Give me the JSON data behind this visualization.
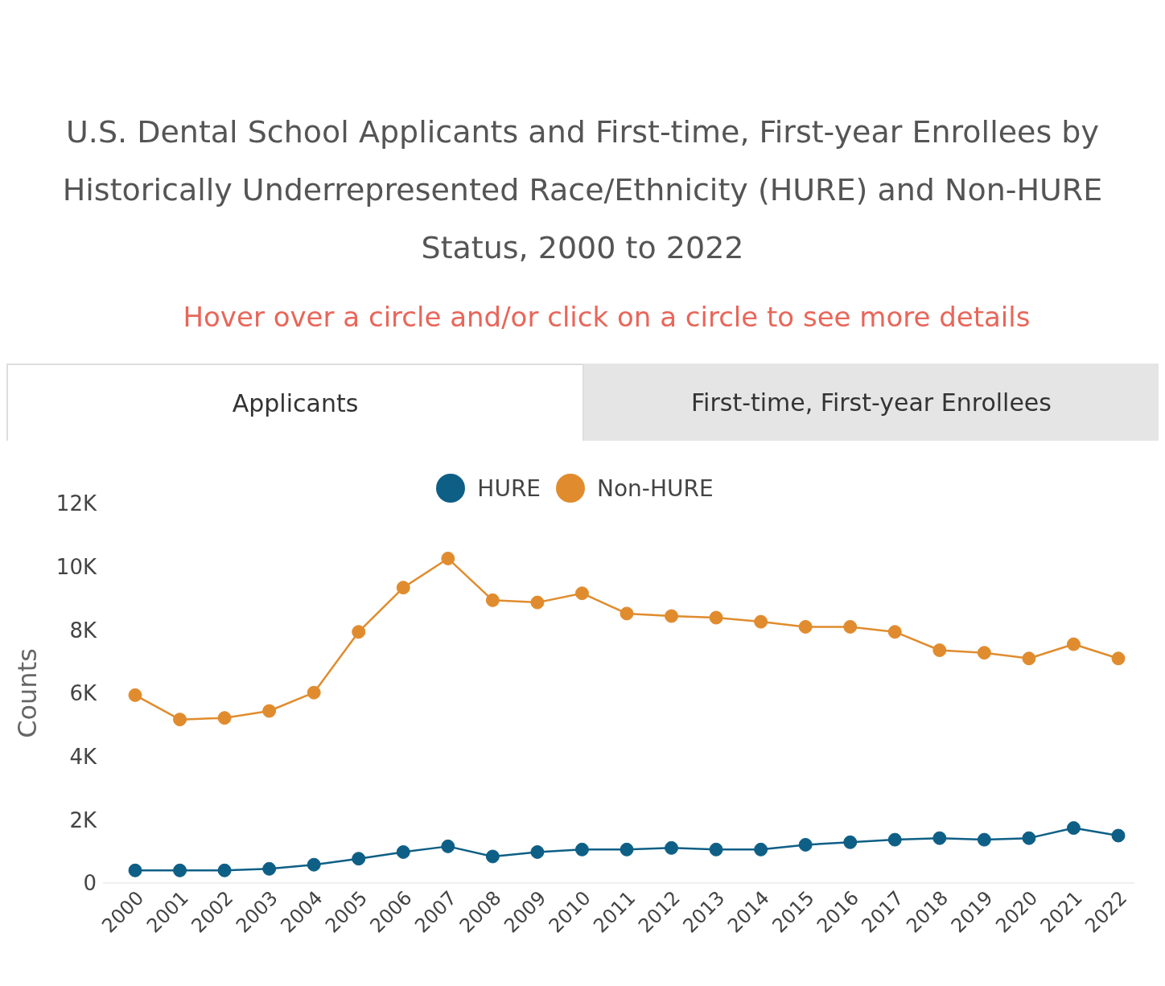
{
  "chart_data": {
    "type": "line",
    "title": "U.S. Dental School Applicants and First-time, First-year Enrollees by Historically Underrepresented Race/Ethnicity (HURE) and Non-HURE Status, 2000 to 2022",
    "annotations": [
      "Hover over a circle and/or click on a circle to see more details",
      "Applicants",
      "First-time, First-year Enrollees"
    ],
    "categories": [
      "2000",
      "2001",
      "2002",
      "2003",
      "2004",
      "2005",
      "2006",
      "2007",
      "2008",
      "2009",
      "2010",
      "2011",
      "2012",
      "2013",
      "2014",
      "2015",
      "2016",
      "2017",
      "2018",
      "2019",
      "2020",
      "2021",
      "2022"
    ],
    "series": [
      {
        "name": "HURE",
        "color": "#0e5f86",
        "values": [
          400,
          400,
          400,
          450,
          580,
          770,
          980,
          1160,
          840,
          980,
          1060,
          1060,
          1110,
          1060,
          1060,
          1210,
          1290,
          1370,
          1420,
          1370,
          1420,
          1740,
          1500
        ]
      },
      {
        "name": "Non-HURE",
        "color": "#e08c2e",
        "values": [
          5940,
          5170,
          5220,
          5440,
          6020,
          7940,
          9340,
          10260,
          8940,
          8870,
          9160,
          8520,
          8440,
          8390,
          8260,
          8100,
          8100,
          7940,
          7360,
          7280,
          7100,
          7550,
          7100
        ]
      }
    ],
    "ylabel": "Counts",
    "ylim": [
      0,
      12000
    ],
    "yticks": [
      {
        "value": 0,
        "label": "0"
      },
      {
        "value": 2000,
        "label": "2K"
      },
      {
        "value": 4000,
        "label": "4K"
      },
      {
        "value": 6000,
        "label": "6K"
      },
      {
        "value": 8000,
        "label": "8K"
      },
      {
        "value": 10000,
        "label": "10K"
      },
      {
        "value": 12000,
        "label": "12K"
      }
    ],
    "grid": false,
    "legend": "top",
    "marker": "circle",
    "line_style": "solid"
  }
}
